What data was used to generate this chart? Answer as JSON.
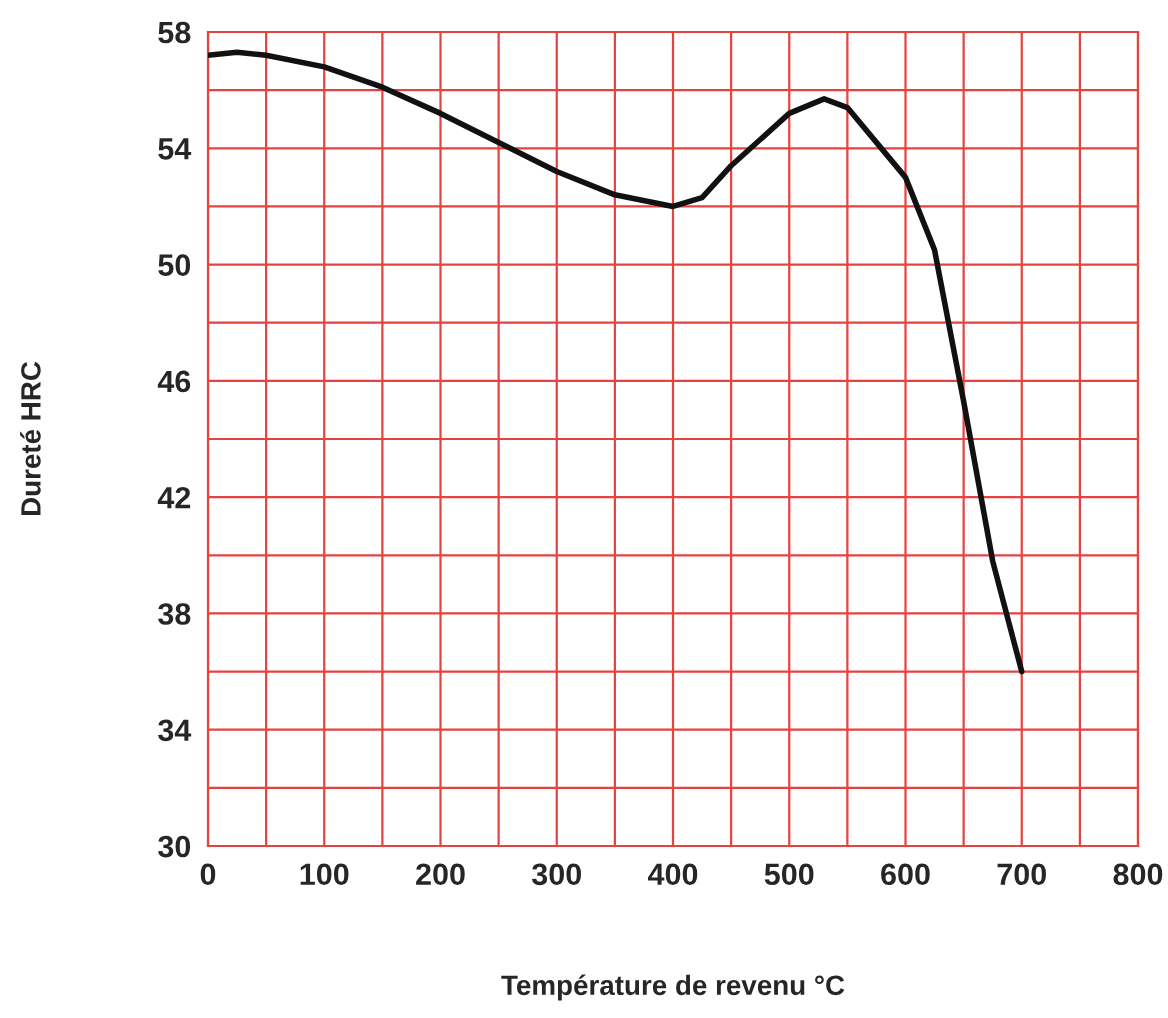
{
  "chart_data": {
    "type": "line",
    "xlabel": "Température de revenu °C",
    "ylabel": "Dureté HRC",
    "x": [
      0,
      25,
      50,
      100,
      150,
      200,
      250,
      300,
      350,
      400,
      425,
      450,
      500,
      530,
      550,
      600,
      625,
      650,
      675,
      700
    ],
    "series": [
      {
        "color": "#111111",
        "values": [
          57.2,
          57.3,
          57.2,
          56.8,
          56.1,
          55.2,
          54.2,
          53.2,
          52.4,
          52.0,
          52.3,
          53.4,
          55.2,
          55.7,
          55.4,
          53.0,
          50.5,
          45.3,
          39.8,
          36.0
        ]
      }
    ],
    "xlim": [
      0,
      800
    ],
    "ylim": [
      30,
      58
    ],
    "xticks": [
      0,
      {
        "value": 50,
        "label": null
      },
      100,
      {
        "value": 150,
        "label": null
      },
      200,
      {
        "value": 250,
        "label": null
      },
      300,
      {
        "value": 350,
        "label": null
      },
      400,
      {
        "value": 450,
        "label": null
      },
      500,
      {
        "value": 550,
        "label": null
      },
      600,
      {
        "value": 650,
        "label": null
      },
      700,
      {
        "value": 750,
        "label": null
      },
      800
    ],
    "yticks": [
      30,
      {
        "value": 32,
        "label": null
      },
      34,
      {
        "value": 36,
        "label": null
      },
      38,
      {
        "value": 40,
        "label": null
      },
      42,
      {
        "value": 44,
        "label": null
      },
      46,
      {
        "value": 48,
        "label": null
      },
      50,
      {
        "value": 52,
        "label": null
      },
      54,
      {
        "value": 56,
        "label": null
      },
      58
    ],
    "grid": true,
    "legend": false,
    "marker": "none",
    "line_style": "solid"
  }
}
